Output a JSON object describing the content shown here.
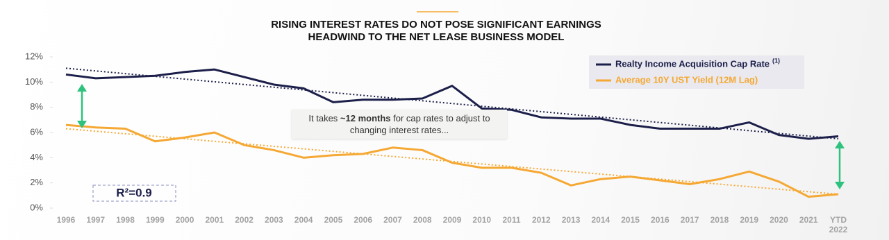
{
  "chart_data": {
    "type": "line",
    "title": [
      "RISING INTEREST RATES DO NOT POSE SIGNIFICANT EARNINGS",
      "HEADWIND TO THE NET LEASE BUSINESS MODEL"
    ],
    "categories": [
      "1996",
      "1997",
      "1998",
      "1999",
      "2000",
      "2001",
      "2002",
      "2003",
      "2004",
      "2005",
      "2006",
      "2007",
      "2008",
      "2009",
      "2010",
      "2011",
      "2012",
      "2013",
      "2014",
      "2015",
      "2016",
      "2017",
      "2018",
      "2019",
      "2020",
      "2021",
      "YTD 2022"
    ],
    "series": [
      {
        "name": "Realty Income Acquisition Cap Rate",
        "note": "(1)",
        "color": "#1c1f4a",
        "values": [
          10.6,
          10.3,
          10.4,
          10.5,
          10.8,
          11.0,
          10.4,
          9.8,
          9.5,
          8.4,
          8.6,
          8.6,
          8.7,
          9.7,
          7.9,
          7.8,
          7.2,
          7.1,
          7.1,
          6.6,
          6.3,
          6.3,
          6.3,
          6.8,
          5.8,
          5.5,
          5.7
        ],
        "trend": [
          11.1,
          5.5
        ]
      },
      {
        "name": "Average 10Y UST Yield (12M Lag)",
        "color": "#f5a833",
        "values": [
          6.6,
          6.4,
          6.3,
          5.3,
          5.6,
          6.0,
          5.0,
          4.6,
          4.0,
          4.2,
          4.3,
          4.8,
          4.6,
          3.6,
          3.2,
          3.2,
          2.8,
          1.8,
          2.3,
          2.5,
          2.2,
          1.9,
          2.3,
          2.9,
          2.1,
          0.9,
          1.1
        ],
        "trend": [
          6.3,
          1.1
        ]
      }
    ],
    "ylim": [
      0,
      12
    ],
    "yticks": [
      {
        "value": 0,
        "label": "0%"
      },
      {
        "value": 2,
        "label": "2%"
      },
      {
        "value": 4,
        "label": "4%"
      },
      {
        "value": 6,
        "label": "6%"
      },
      {
        "value": 8,
        "label": "8%"
      },
      {
        "value": 10,
        "label": "10%"
      },
      {
        "value": 12,
        "label": "12%"
      }
    ],
    "annotation": [
      "It takes ",
      "~12 months",
      " for cap rates to adjust to changing interest rates..."
    ],
    "r_squared": "R²=0.9",
    "legend": "top-right"
  }
}
